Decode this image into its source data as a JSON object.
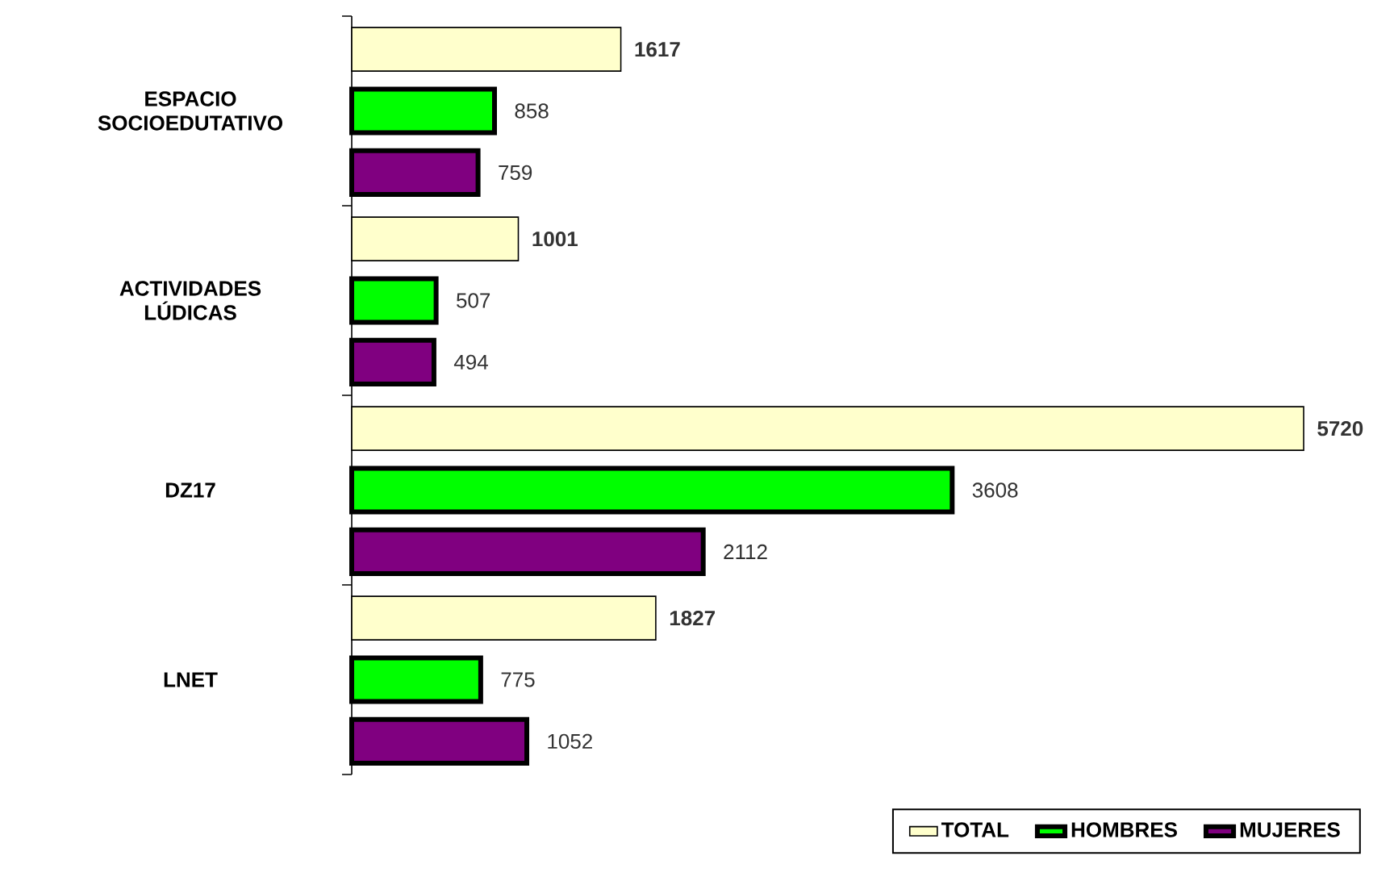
{
  "chart_data": {
    "type": "bar",
    "orientation": "horizontal",
    "categories": [
      "ESPACIO SOCIOEDUTATIVO",
      "ACTIVIDADES LÚDICAS",
      "DZ17",
      "LNET"
    ],
    "series": [
      {
        "name": "TOTAL",
        "color": "#ffffcc",
        "values": [
          1617,
          1001,
          5720,
          1827
        ]
      },
      {
        "name": "HOMBRES",
        "color": "#00ff00",
        "values": [
          858,
          507,
          3608,
          775
        ]
      },
      {
        "name": "MUJERES",
        "color": "#800080",
        "values": [
          759,
          494,
          2112,
          1052
        ]
      }
    ],
    "data_labels": true,
    "legend": "bottom right"
  }
}
